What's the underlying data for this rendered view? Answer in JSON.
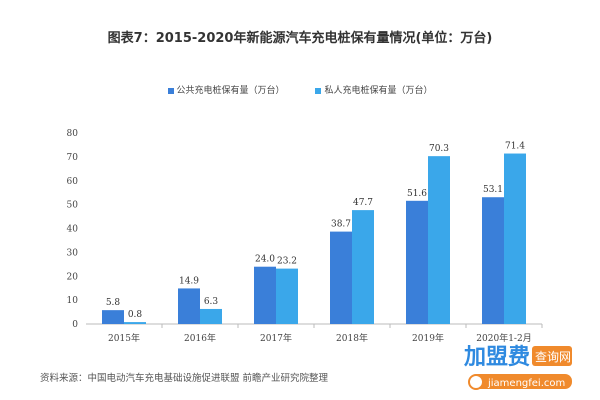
{
  "chart_data": {
    "type": "bar",
    "title": "图表7：2015-2020年新能源汽车充电桩保有量情况(单位：万台)",
    "categories": [
      "2015年",
      "2016年",
      "2017年",
      "2018年",
      "2019年",
      "2020年1-2月"
    ],
    "series": [
      {
        "name": "公共充电桩保有量（万台）",
        "color": "#3a7fd9",
        "values": [
          5.8,
          14.9,
          24.0,
          38.7,
          51.6,
          53.1
        ]
      },
      {
        "name": "私人充电桩保有量（万台）",
        "color": "#3aa7ea",
        "values": [
          0.8,
          6.3,
          23.2,
          47.7,
          70.3,
          71.4
        ]
      }
    ],
    "ylim": [
      0,
      80
    ],
    "yticks": [
      0,
      10,
      20,
      30,
      40,
      50,
      60,
      70,
      80
    ],
    "grid": false,
    "legend": "top-center",
    "xlabel": "",
    "ylabel": ""
  },
  "source": "资料来源：中国电动汽车充电基础设施促进联盟 前瞻产业研究院整理",
  "watermark": {
    "logo_main": "加盟费",
    "logo_tag": "查询网",
    "logo_url": "jiamengfei.com"
  }
}
